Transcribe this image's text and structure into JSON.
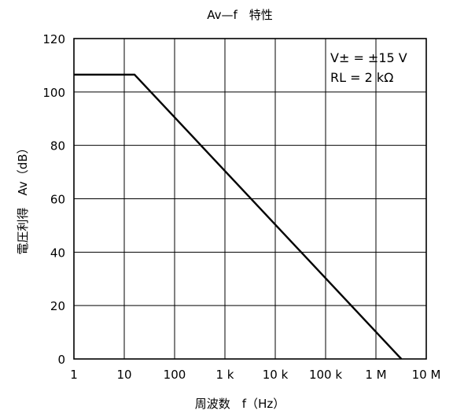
{
  "chart_data": {
    "type": "line",
    "title": "Av—f　特性",
    "xlabel": "周波数　f（Hz）",
    "ylabel": "電圧利得　Av（dB）",
    "x_scale": "log",
    "xlim": [
      1,
      10000000
    ],
    "ylim": [
      0,
      120
    ],
    "x_ticks": [
      {
        "value": 1,
        "label": "1"
      },
      {
        "value": 10,
        "label": "10"
      },
      {
        "value": 100,
        "label": "100"
      },
      {
        "value": 1000,
        "label": "1 k"
      },
      {
        "value": 10000,
        "label": "10 k"
      },
      {
        "value": 100000,
        "label": "100 k"
      },
      {
        "value": 1000000,
        "label": "1 M"
      },
      {
        "value": 10000000,
        "label": "10 M"
      }
    ],
    "y_ticks": [
      {
        "value": 0,
        "label": "0"
      },
      {
        "value": 20,
        "label": "20"
      },
      {
        "value": 40,
        "label": "40"
      },
      {
        "value": 60,
        "label": "60"
      },
      {
        "value": 80,
        "label": "80"
      },
      {
        "value": 100,
        "label": "100"
      },
      {
        "value": 120,
        "label": "120"
      }
    ],
    "grid": true,
    "series": [
      {
        "x": [
          1,
          16,
          3200000
        ],
        "y": [
          106.5,
          106.5,
          0
        ]
      }
    ],
    "annotations": [
      {
        "text": "V± = ±15 V",
        "position": "top-right"
      },
      {
        "text": "RL = 2 kΩ",
        "position": "top-right"
      }
    ]
  }
}
